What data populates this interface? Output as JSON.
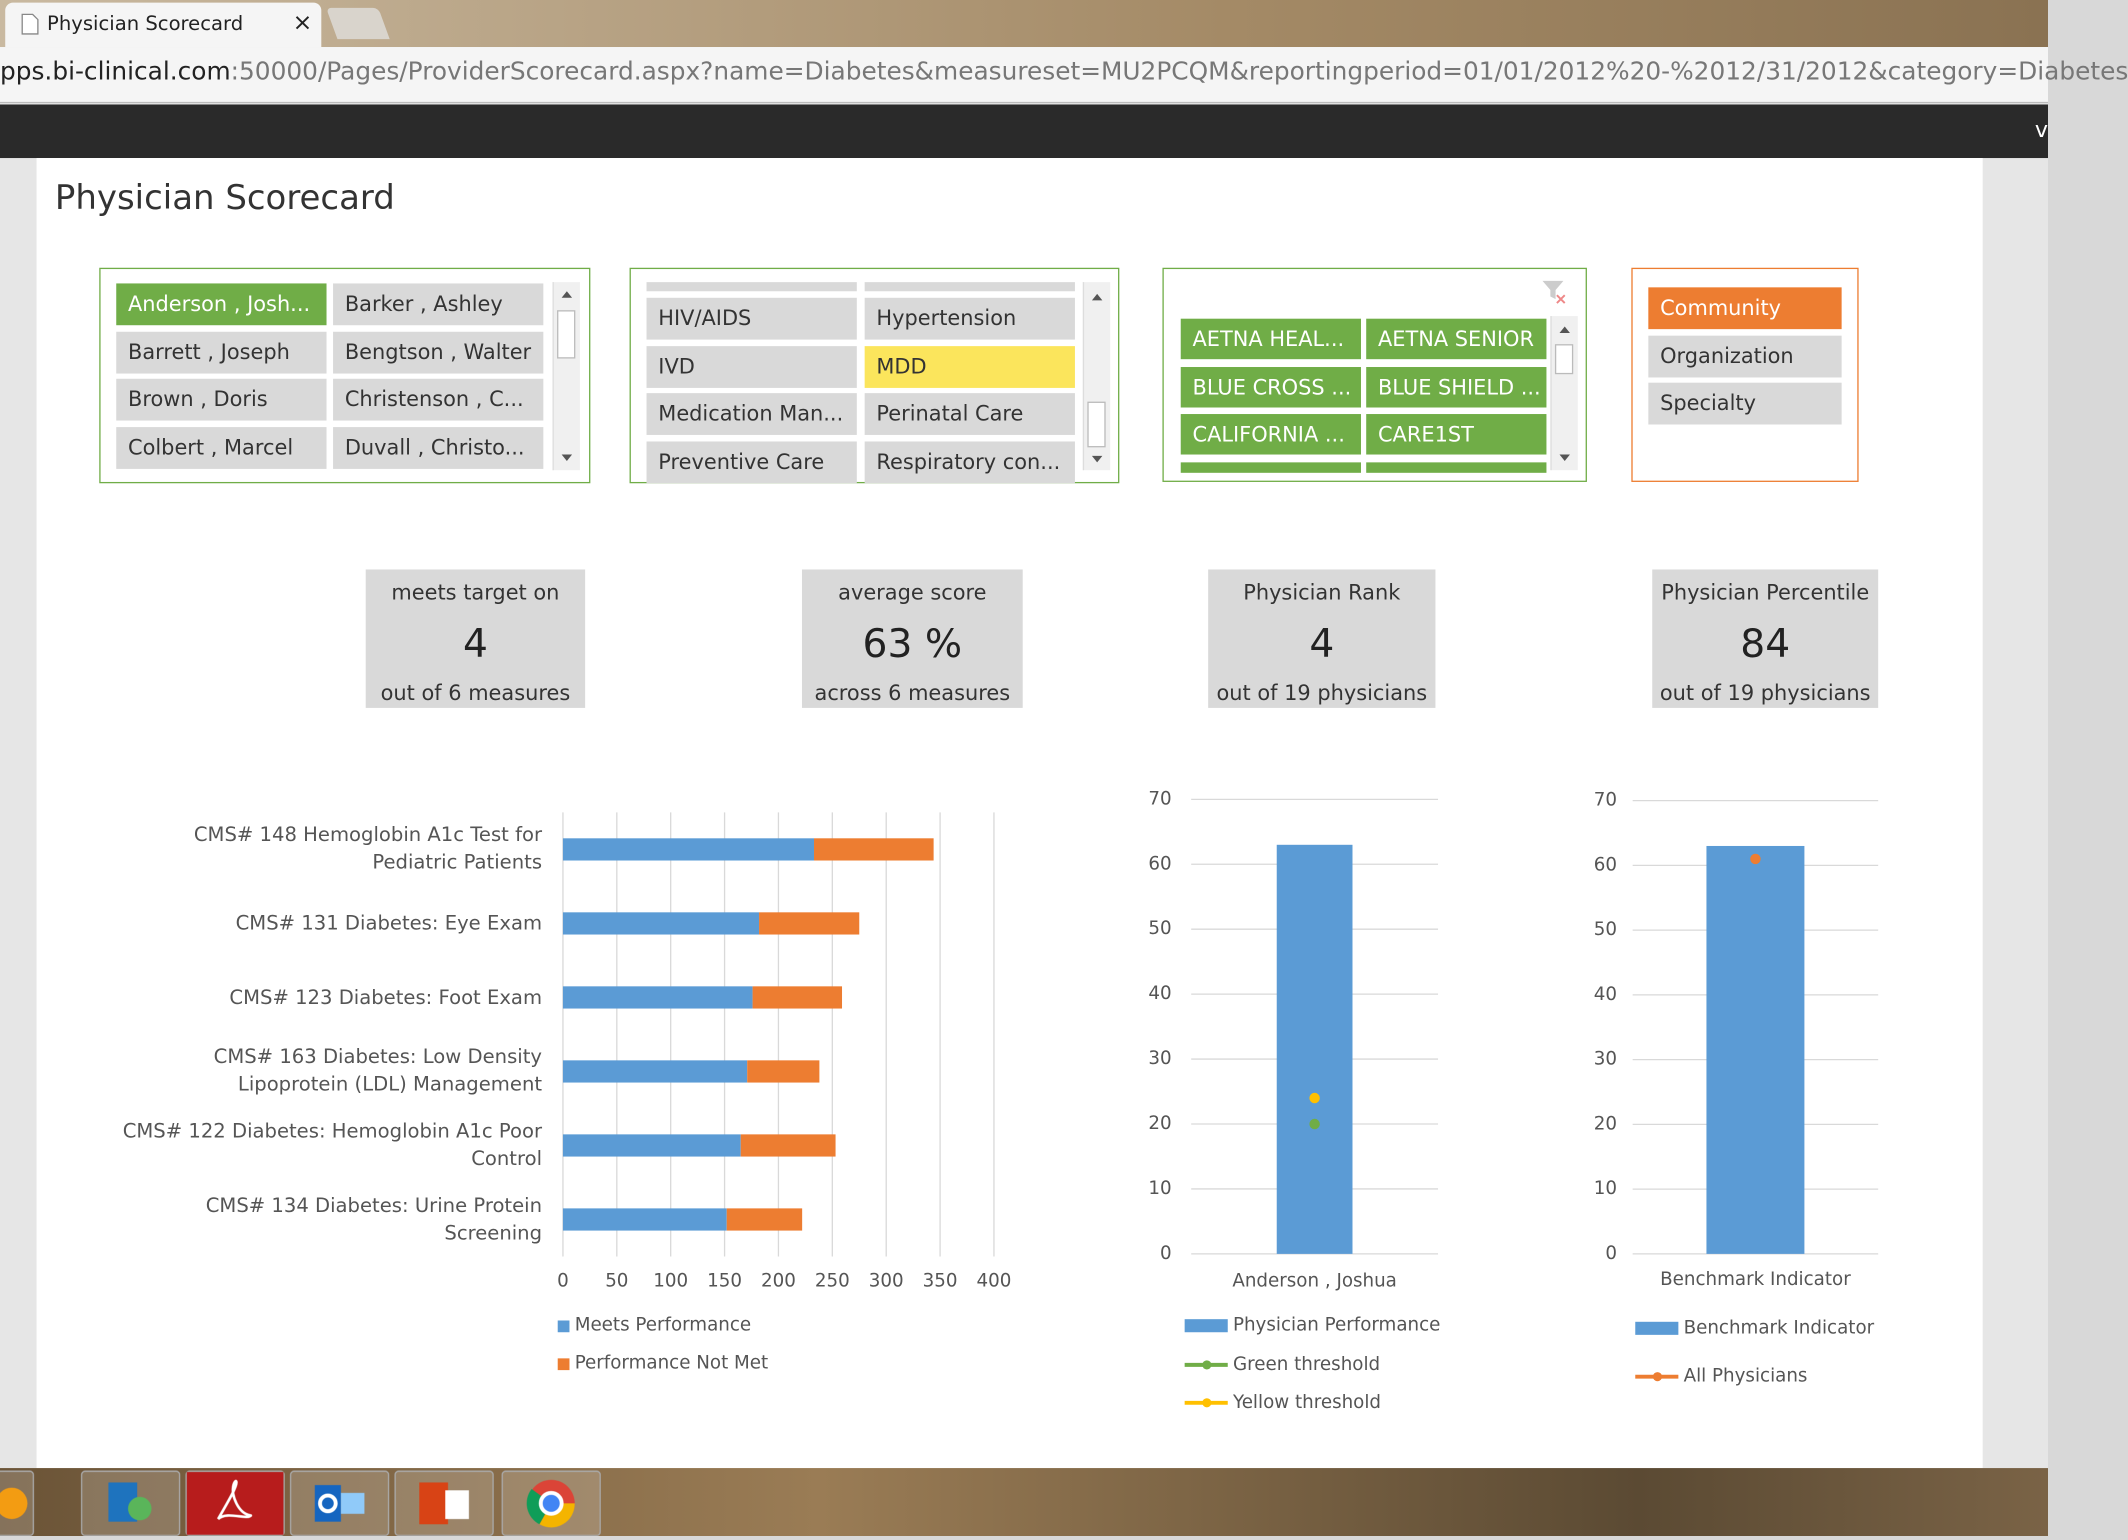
{
  "browser": {
    "tab_title": "Physician Scorecard",
    "tab_close": "×",
    "url_host": "pps.bi-clinical.com",
    "url_path": ":50000/Pages/ProviderScorecard.aspx?name=Diabetes&measureset=MU2PCQM&reportingperiod=01/01/2012%20-%2012/31/2012&category=Diabetes",
    "nav_text": "v"
  },
  "page_title": "Physician Scorecard",
  "slicers": [
    {
      "items": [
        "Anderson , Josh...",
        "Barker , Ashley",
        "Barrett , Joseph",
        "Bengtson , Walter",
        "Brown , Doris",
        "Christenson , C...",
        "Colbert , Marcel",
        "Duvall , Christo..."
      ],
      "selected": [
        0
      ],
      "selected_color": "#70ad47"
    },
    {
      "items": [
        "HIV/AIDS",
        "Hypertension",
        "IVD",
        "MDD",
        "Medication Man...",
        "Perinatal Care",
        "Preventive Care",
        "Respiratory con..."
      ],
      "selected": [
        3
      ],
      "selected_color": "#fbe55c"
    },
    {
      "items": [
        "AETNA HEAL...",
        "AETNA SENIOR",
        "BLUE CROSS ...",
        "BLUE SHIELD ...",
        "CALIFORNIA ...",
        "CARE1ST"
      ],
      "selected": [
        0,
        1,
        2,
        3,
        4,
        5
      ],
      "selected_color": "#70ad47"
    },
    {
      "items": [
        "Community",
        "Organization",
        "Specialty"
      ],
      "selected": [
        0
      ],
      "selected_color": "#ed7d31"
    }
  ],
  "kpis": [
    {
      "label": "meets target on",
      "value": "4",
      "caption": "out of 6 measures"
    },
    {
      "label": "average score",
      "value": "63 %",
      "caption": "across 6 measures"
    },
    {
      "label": "Physician Rank",
      "value": "4",
      "caption": "out of 19 physicians"
    },
    {
      "label": "Physician Percentile",
      "value": "84",
      "caption": "out of 19 physicians"
    }
  ],
  "chart_data": [
    {
      "type": "bar",
      "orientation": "horizontal",
      "stacked": true,
      "categories": [
        "CMS# 148 Hemoglobin A1c Test for Pediatric Patients",
        "CMS# 131 Diabetes: Eye Exam",
        "CMS# 123 Diabetes: Foot Exam",
        "CMS# 163 Diabetes: Low Density Lipoprotein (LDL) Management",
        "CMS# 122 Diabetes: Hemoglobin A1c Poor Control",
        "CMS# 134 Diabetes: Urine Protein Screening"
      ],
      "series": [
        {
          "name": "Meets Performance",
          "color": "#5b9bd5",
          "values": [
            233,
            182,
            176,
            171,
            165,
            152
          ]
        },
        {
          "name": "Performance Not Met",
          "color": "#ed7d31",
          "values": [
            111,
            93,
            83,
            67,
            88,
            70
          ]
        }
      ],
      "xlim": [
        0,
        400
      ],
      "xticks": [
        0,
        50,
        100,
        150,
        200,
        250,
        300,
        350,
        400
      ],
      "grid": true
    },
    {
      "type": "combo",
      "categories": [
        "Anderson , Joshua"
      ],
      "series": [
        {
          "name": "Physician Performance",
          "type": "bar",
          "color": "#5b9bd5",
          "values": [
            63
          ]
        },
        {
          "name": "Green threshold",
          "type": "line",
          "color": "#70ad47",
          "values": [
            20
          ]
        },
        {
          "name": "Yellow threshold",
          "type": "line",
          "color": "#ffc000",
          "values": [
            24
          ]
        }
      ],
      "ylim": [
        0,
        70
      ],
      "yticks": [
        0,
        10,
        20,
        30,
        40,
        50,
        60,
        70
      ],
      "grid": true
    },
    {
      "type": "combo",
      "categories": [
        "Benchmark Indicator"
      ],
      "series": [
        {
          "name": "Benchmark Indicator",
          "type": "bar",
          "color": "#5b9bd5",
          "values": [
            63
          ]
        },
        {
          "name": "All Physicians",
          "type": "line",
          "color": "#ed7d31",
          "values": [
            61
          ]
        }
      ],
      "ylim": [
        0,
        70
      ],
      "yticks": [
        0,
        10,
        20,
        30,
        40,
        50,
        60,
        70
      ],
      "grid": true
    }
  ]
}
